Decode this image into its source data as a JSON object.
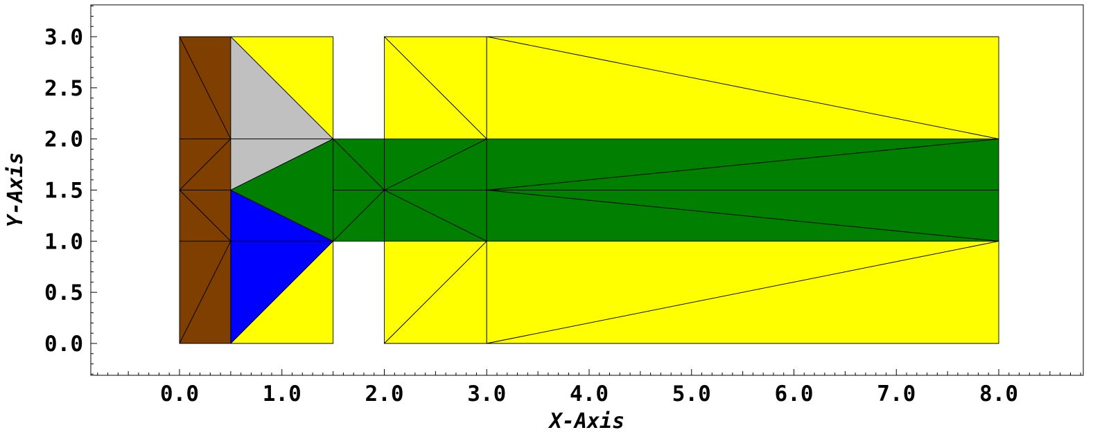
{
  "chart_data": {
    "type": "mesh",
    "xlabel": "X-Axis",
    "ylabel": "Y-Axis",
    "xlim": [
      -0.85,
      8.85
    ],
    "ylim": [
      -0.32,
      3.32
    ],
    "x_ticks": [
      {
        "value": 0,
        "label": "0.0"
      },
      {
        "value": 1,
        "label": "1.0"
      },
      {
        "value": 2,
        "label": "2.0"
      },
      {
        "value": 3,
        "label": "3.0"
      },
      {
        "value": 4,
        "label": "4.0"
      },
      {
        "value": 5,
        "label": "5.0"
      },
      {
        "value": 6,
        "label": "6.0"
      },
      {
        "value": 7,
        "label": "7.0"
      },
      {
        "value": 8,
        "label": "8.0"
      }
    ],
    "y_ticks": [
      {
        "value": 0,
        "label": "0.0"
      },
      {
        "value": 0.5,
        "label": "0.5"
      },
      {
        "value": 1,
        "label": "1.0"
      },
      {
        "value": 1.5,
        "label": "1.5"
      },
      {
        "value": 2,
        "label": "2.0"
      },
      {
        "value": 2.5,
        "label": "2.5"
      },
      {
        "value": 3,
        "label": "3.0"
      }
    ],
    "minor_tick_step": 0.1,
    "colors": {
      "brown": "#7f3f00",
      "gray": "#c0c0c0",
      "blue": "#0000ff",
      "yellow": "#ffff00",
      "green": "#007f00",
      "edge": "#000000"
    },
    "triangles": [
      {
        "region": "brown",
        "points": [
          [
            0,
            3
          ],
          [
            0.5,
            3
          ],
          [
            0.5,
            2
          ]
        ]
      },
      {
        "region": "brown",
        "points": [
          [
            0,
            3
          ],
          [
            0,
            2
          ],
          [
            0.5,
            2
          ]
        ]
      },
      {
        "region": "brown",
        "points": [
          [
            0,
            2
          ],
          [
            0.5,
            2
          ],
          [
            0,
            1.5
          ]
        ]
      },
      {
        "region": "brown",
        "points": [
          [
            0.5,
            2
          ],
          [
            0.5,
            1.5
          ],
          [
            0,
            1.5
          ]
        ]
      },
      {
        "region": "brown",
        "points": [
          [
            0,
            1.5
          ],
          [
            0.5,
            1.5
          ],
          [
            0.5,
            1
          ]
        ]
      },
      {
        "region": "brown",
        "points": [
          [
            0,
            1.5
          ],
          [
            0,
            1
          ],
          [
            0.5,
            1
          ]
        ]
      },
      {
        "region": "brown",
        "points": [
          [
            0,
            1
          ],
          [
            0.5,
            1
          ],
          [
            0,
            0
          ]
        ]
      },
      {
        "region": "brown",
        "points": [
          [
            0.5,
            1
          ],
          [
            0.5,
            0
          ],
          [
            0,
            0
          ]
        ]
      },
      {
        "region": "yellow",
        "points": [
          [
            0.5,
            3
          ],
          [
            1.5,
            3
          ],
          [
            1.5,
            2
          ]
        ]
      },
      {
        "region": "gray",
        "points": [
          [
            0.5,
            3
          ],
          [
            0.5,
            2
          ],
          [
            1.5,
            2
          ]
        ]
      },
      {
        "region": "gray",
        "points": [
          [
            0.5,
            2
          ],
          [
            1.5,
            2
          ],
          [
            0.5,
            1.5
          ]
        ]
      },
      {
        "region": "blue",
        "points": [
          [
            0.5,
            1.5
          ],
          [
            1.5,
            1
          ],
          [
            0.5,
            1
          ]
        ]
      },
      {
        "region": "blue",
        "points": [
          [
            0.5,
            1
          ],
          [
            1.5,
            1
          ],
          [
            0.5,
            0
          ]
        ]
      },
      {
        "region": "yellow",
        "points": [
          [
            0.5,
            0
          ],
          [
            1.5,
            1
          ],
          [
            1.5,
            0
          ]
        ]
      },
      {
        "region": "green",
        "points": [
          [
            0.5,
            1.5
          ],
          [
            1.5,
            2
          ],
          [
            1.5,
            1
          ]
        ]
      },
      {
        "region": "green",
        "points": [
          [
            1.5,
            2
          ],
          [
            2,
            2
          ],
          [
            2,
            1.5
          ]
        ]
      },
      {
        "region": "green",
        "points": [
          [
            1.5,
            2
          ],
          [
            2,
            1.5
          ],
          [
            1.5,
            1.5
          ]
        ]
      },
      {
        "region": "green",
        "points": [
          [
            1.5,
            1.5
          ],
          [
            2,
            1.5
          ],
          [
            1.5,
            1
          ]
        ]
      },
      {
        "region": "green",
        "points": [
          [
            2,
            1.5
          ],
          [
            2,
            1
          ],
          [
            1.5,
            1
          ]
        ]
      },
      {
        "region": "green",
        "points": [
          [
            2,
            2
          ],
          [
            3,
            2
          ],
          [
            2,
            1.5
          ]
        ]
      },
      {
        "region": "green",
        "points": [
          [
            3,
            2
          ],
          [
            3,
            1.5
          ],
          [
            2,
            1.5
          ]
        ]
      },
      {
        "region": "green",
        "points": [
          [
            2,
            1.5
          ],
          [
            3,
            1.5
          ],
          [
            3,
            1
          ]
        ]
      },
      {
        "region": "green",
        "points": [
          [
            2,
            1.5
          ],
          [
            2,
            1
          ],
          [
            3,
            1
          ]
        ]
      },
      {
        "region": "green",
        "points": [
          [
            3,
            2
          ],
          [
            8,
            2
          ],
          [
            3,
            1.5
          ]
        ]
      },
      {
        "region": "green",
        "points": [
          [
            3,
            1.5
          ],
          [
            8,
            2
          ],
          [
            8,
            1.5
          ]
        ]
      },
      {
        "region": "green",
        "points": [
          [
            3,
            1.5
          ],
          [
            8,
            1.5
          ],
          [
            8,
            1
          ]
        ]
      },
      {
        "region": "green",
        "points": [
          [
            3,
            1.5
          ],
          [
            8,
            1
          ],
          [
            3,
            1
          ]
        ]
      },
      {
        "region": "yellow",
        "points": [
          [
            2,
            3
          ],
          [
            3,
            3
          ],
          [
            3,
            2
          ]
        ]
      },
      {
        "region": "yellow",
        "points": [
          [
            2,
            3
          ],
          [
            2,
            2
          ],
          [
            3,
            2
          ]
        ]
      },
      {
        "region": "yellow",
        "points": [
          [
            2,
            1
          ],
          [
            3,
            1
          ],
          [
            2,
            0
          ]
        ]
      },
      {
        "region": "yellow",
        "points": [
          [
            3,
            1
          ],
          [
            3,
            0
          ],
          [
            2,
            0
          ]
        ]
      },
      {
        "region": "yellow",
        "points": [
          [
            3,
            3
          ],
          [
            8,
            3
          ],
          [
            8,
            2
          ]
        ]
      },
      {
        "region": "yellow",
        "points": [
          [
            3,
            3
          ],
          [
            3,
            2
          ],
          [
            8,
            2
          ]
        ]
      },
      {
        "region": "yellow",
        "points": [
          [
            3,
            1
          ],
          [
            8,
            1
          ],
          [
            3,
            0
          ]
        ]
      },
      {
        "region": "yellow",
        "points": [
          [
            3,
            0
          ],
          [
            8,
            1
          ],
          [
            8,
            0
          ]
        ]
      }
    ]
  }
}
